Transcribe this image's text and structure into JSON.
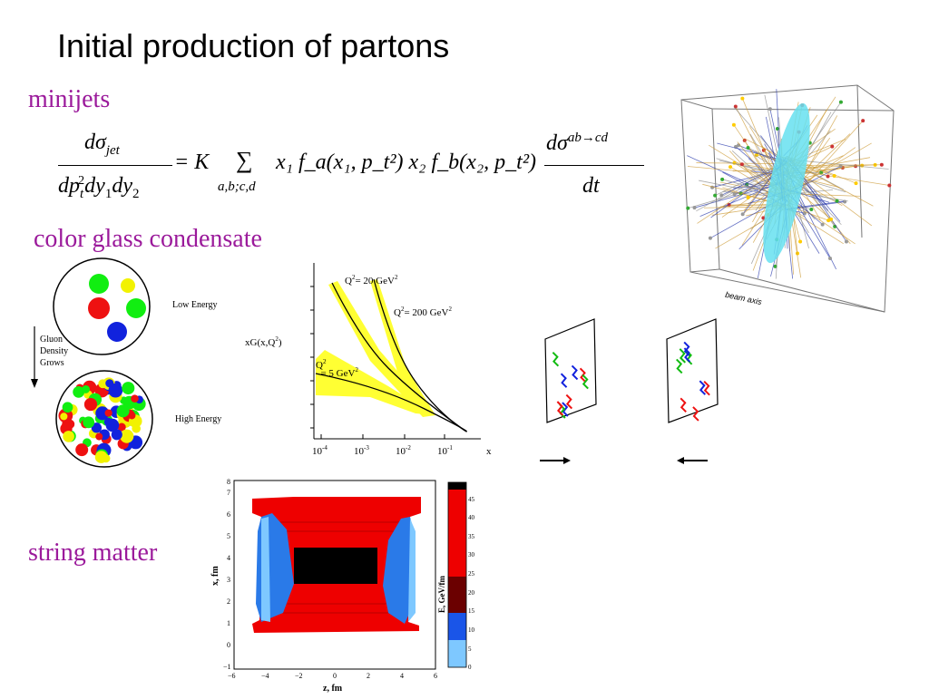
{
  "slide": {
    "title": "Initial production of partons",
    "sections": {
      "minijets": "minijets",
      "cgc": "color glass condensate",
      "string": "string matter"
    }
  },
  "equation": {
    "lhs_num": "dσ",
    "lhs_num_sub": "jet",
    "lhs_den": "dp",
    "lhs_den_rest": "dy",
    "eq_K": "= K",
    "sum": "∑",
    "sum_sub": "a,b;c,d",
    "rhs_body": "x₁ f_a(x₁, p_t²) x₂ f_b(x₂, p_t²)",
    "rhs_frac_num": "dσ",
    "rhs_frac_num_sup": "ab→cd",
    "rhs_frac_den": "dt"
  },
  "event_display": {
    "label": "beam axis",
    "colors": {
      "disk": "#66e0f0",
      "tracks_a": "#2233aa",
      "tracks_b": "#cc9933",
      "tracks_c": "#888888"
    }
  },
  "gluon_density": {
    "low_label": "Low Energy",
    "high_label": "High Energy",
    "arrow_label": [
      "Gluon",
      "Density",
      "Grows"
    ],
    "colors": {
      "red": "#ee1111",
      "green": "#11ee11",
      "blue": "#1122dd",
      "yellow": "#f2f200"
    }
  },
  "xg_plot": {
    "ylabel": "xG(x,Q",
    "ylabel_sup": "2",
    "ylabel_end": ")",
    "xlabel": "x",
    "curves": [
      {
        "label": "Q",
        "label_sup": "2",
        "label_rest": "= 20 GeV",
        "label_rest_sup": "2"
      },
      {
        "label": "Q",
        "label_sup": "2",
        "label_rest": "= 200 GeV",
        "label_rest_sup": "2"
      },
      {
        "label": "Q",
        "label_sup": "2",
        "label_rest": "= 5 GeV",
        "label_rest_sup": "2"
      }
    ],
    "xticks": [
      {
        "base": "10",
        "exp": "-4"
      },
      {
        "base": "10",
        "exp": "-3"
      },
      {
        "base": "10",
        "exp": "-2"
      },
      {
        "base": "10",
        "exp": "-1"
      }
    ],
    "band_color": "#ffff33"
  },
  "string_plot": {
    "xlabel": "z, fm",
    "ylabel": "x, fm",
    "cbar_label": "E, GeV/fm",
    "xticks": [
      "−6",
      "−4",
      "−2",
      "0",
      "2",
      "4",
      "6"
    ],
    "yticks": [
      "−1",
      "0",
      "1",
      "2",
      "3",
      "4",
      "5",
      "6",
      "7",
      "8"
    ],
    "cbar_ticks": [
      "0",
      "5",
      "10",
      "15",
      "20",
      "25",
      "30",
      "35",
      "40",
      "45"
    ]
  }
}
